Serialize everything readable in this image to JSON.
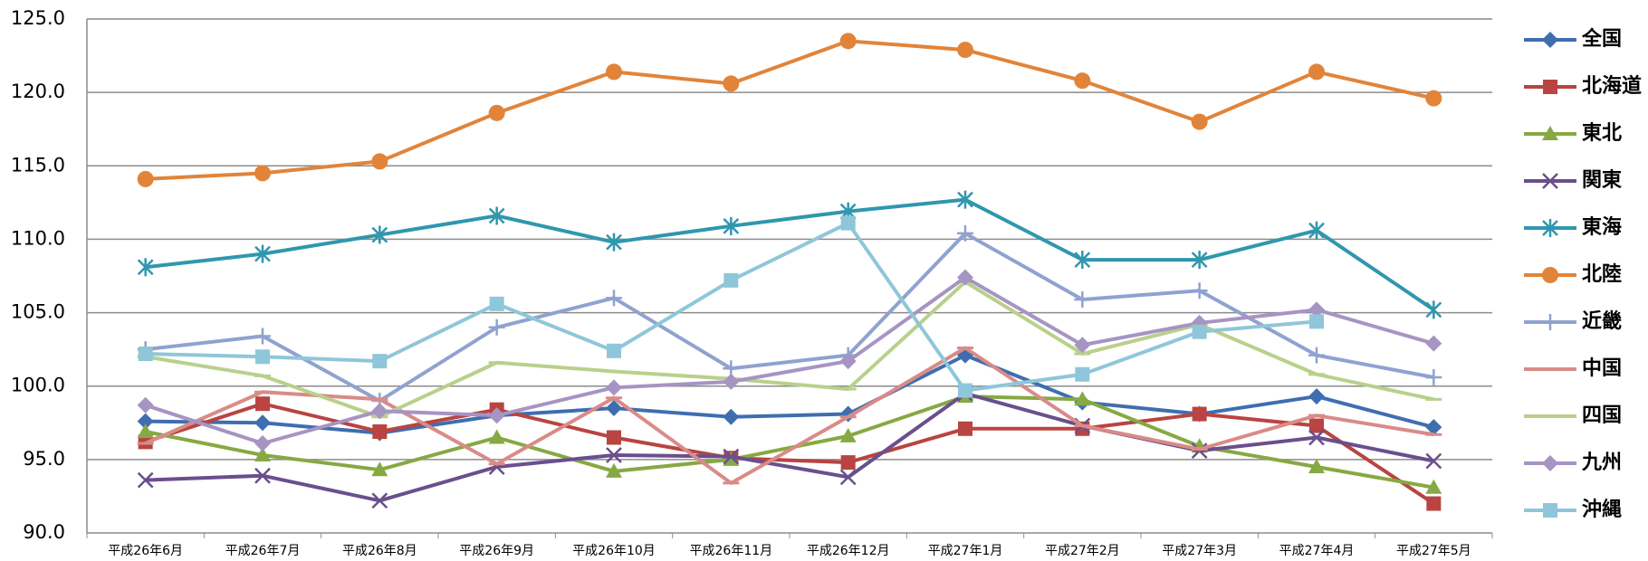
{
  "chart_data": {
    "type": "line",
    "categories": [
      "平成26年6月",
      "平成26年7月",
      "平成26年8月",
      "平成26年9月",
      "平成26年10月",
      "平成26年11月",
      "平成26年12月",
      "平成27年1月",
      "平成27年2月",
      "平成27年3月",
      "平成27年4月",
      "平成27年5月"
    ],
    "ylim": [
      90,
      125
    ],
    "yticks": [
      {
        "value": 90,
        "label": "90.0"
      },
      {
        "value": 95,
        "label": "95.0"
      },
      {
        "value": 100,
        "label": "100.0"
      },
      {
        "value": 105,
        "label": "105.0"
      },
      {
        "value": 110,
        "label": "110.0"
      },
      {
        "value": 115,
        "label": "115.0"
      },
      {
        "value": 120,
        "label": "120.0"
      },
      {
        "value": 125,
        "label": "125.0"
      }
    ],
    "grid": true,
    "legend": "right",
    "series": [
      {
        "name": "全国",
        "color": "#3f6eaf",
        "marker": "diamond",
        "values": [
          97.6,
          97.5,
          96.8,
          98.0,
          98.5,
          97.9,
          98.1,
          102.1,
          98.9,
          98.1,
          99.3,
          97.2
        ]
      },
      {
        "name": "北海道",
        "color": "#b94441",
        "marker": "square",
        "values": [
          96.2,
          98.8,
          96.9,
          98.4,
          96.5,
          95.1,
          94.8,
          97.1,
          97.1,
          98.1,
          97.3,
          92.0
        ]
      },
      {
        "name": "東北",
        "color": "#86a943",
        "marker": "triangle",
        "values": [
          96.9,
          95.3,
          94.3,
          96.5,
          94.2,
          95.0,
          96.6,
          99.3,
          99.1,
          95.9,
          94.5,
          93.1
        ]
      },
      {
        "name": "関東",
        "color": "#6a4f8c",
        "marker": "x",
        "values": [
          93.6,
          93.9,
          92.2,
          94.5,
          95.3,
          95.2,
          93.8,
          99.5,
          97.3,
          95.6,
          96.5,
          94.9
        ]
      },
      {
        "name": "東海",
        "color": "#2f97ae",
        "marker": "star",
        "values": [
          108.1,
          109.0,
          110.3,
          111.6,
          109.8,
          110.9,
          111.9,
          112.7,
          108.6,
          108.6,
          110.6,
          105.2
        ]
      },
      {
        "name": "北陸",
        "color": "#e1843a",
        "marker": "circle",
        "values": [
          114.1,
          114.5,
          115.3,
          118.6,
          121.4,
          120.6,
          123.5,
          122.9,
          120.8,
          118.0,
          121.4,
          119.6
        ]
      },
      {
        "name": "近畿",
        "color": "#8fa2d0",
        "marker": "plus",
        "values": [
          102.5,
          103.4,
          99.0,
          104.0,
          106.0,
          101.2,
          102.1,
          110.4,
          105.9,
          106.5,
          102.1,
          100.6
        ]
      },
      {
        "name": "中国",
        "color": "#d98b88",
        "marker": "dash",
        "values": [
          96.1,
          99.6,
          99.1,
          94.7,
          99.2,
          93.4,
          97.9,
          102.6,
          97.3,
          95.7,
          98.0,
          96.7
        ]
      },
      {
        "name": "四国",
        "color": "#b9d08b",
        "marker": "dash",
        "values": [
          102.0,
          100.7,
          97.9,
          101.6,
          101.0,
          100.5,
          99.8,
          107.1,
          102.2,
          104.2,
          100.8,
          99.1
        ]
      },
      {
        "name": "九州",
        "color": "#a694c3",
        "marker": "diamond",
        "values": [
          98.7,
          96.1,
          98.3,
          98.0,
          99.9,
          100.3,
          101.7,
          107.4,
          102.8,
          104.3,
          105.2,
          102.9
        ]
      },
      {
        "name": "沖縄",
        "color": "#8fc6d9",
        "marker": "square",
        "values": [
          102.2,
          102.0,
          101.7,
          105.6,
          102.4,
          107.2,
          111.1,
          99.7,
          100.8,
          103.7,
          104.4,
          null
        ]
      }
    ]
  }
}
